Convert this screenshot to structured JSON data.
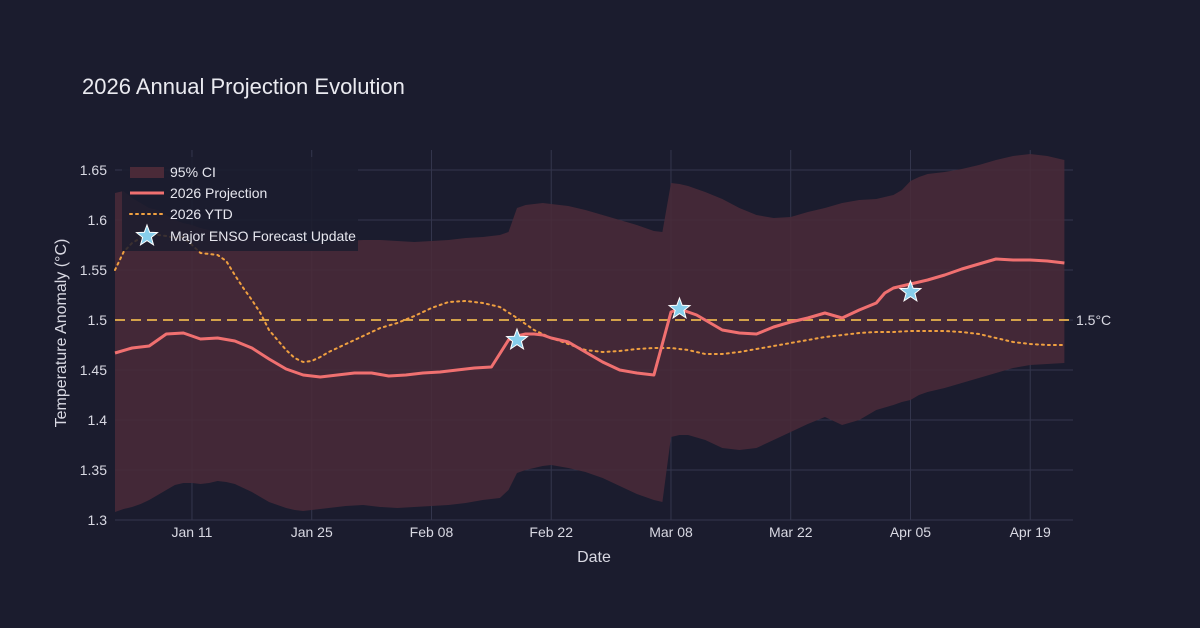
{
  "chart_data": {
    "type": "line",
    "title": "2026 Annual Projection Evolution",
    "xlabel": "Date",
    "ylabel": "Temperature Anomaly (°C)",
    "x_ticks": [
      "Jan 11",
      "Jan 25",
      "Feb 08",
      "Feb 22",
      "Mar 08",
      "Mar 22",
      "Apr 05",
      "Apr 19"
    ],
    "x_tick_days": [
      10,
      24,
      38,
      52,
      66,
      80,
      94,
      108
    ],
    "x_range_days": [
      1,
      113
    ],
    "x_reference": "2026-01-01",
    "ylim": [
      1.3,
      1.67
    ],
    "y_ticks": [
      "1.3",
      "1.35",
      "1.4",
      "1.45",
      "1.5",
      "1.55",
      "1.6",
      "1.65"
    ],
    "grid": true,
    "legend_position": "top-left",
    "colors": {
      "background": "#1b1c2e",
      "ci_fill": "#4a2a38",
      "projection": "#f07070",
      "ytd": "#f0a040",
      "threshold": "#d4a24a",
      "star": "#87ceeb"
    },
    "threshold": {
      "value": 1.5,
      "label": "1.5°C"
    },
    "legend": {
      "ci": "95% CI",
      "projection": "2026 Projection",
      "ytd": "2026 YTD",
      "enso": "Major ENSO Forecast Update"
    },
    "series": [
      {
        "name": "2026 Projection",
        "x": [
          1,
          3,
          5,
          7,
          9,
          11,
          13,
          15,
          17,
          19,
          21,
          23,
          25,
          27,
          29,
          31,
          33,
          35,
          37,
          39,
          41,
          43,
          45,
          47,
          48,
          49,
          50,
          51,
          52,
          54,
          56,
          58,
          60,
          62,
          64,
          66,
          67,
          68,
          69,
          70,
          72,
          74,
          76,
          78,
          80,
          82,
          84,
          86,
          88,
          90,
          91,
          92,
          94,
          96,
          98,
          100,
          102,
          104,
          106,
          108,
          110,
          112
        ],
        "values": [
          1.467,
          1.472,
          1.474,
          1.486,
          1.487,
          1.481,
          1.482,
          1.479,
          1.472,
          1.461,
          1.451,
          1.445,
          1.443,
          1.445,
          1.447,
          1.447,
          1.444,
          1.445,
          1.447,
          1.448,
          1.45,
          1.452,
          1.453,
          1.48,
          1.484,
          1.486,
          1.486,
          1.485,
          1.482,
          1.478,
          1.468,
          1.458,
          1.45,
          1.447,
          1.445,
          1.508,
          1.511,
          1.508,
          1.505,
          1.5,
          1.49,
          1.487,
          1.486,
          1.493,
          1.498,
          1.502,
          1.507,
          1.502,
          1.51,
          1.517,
          1.527,
          1.532,
          1.536,
          1.54,
          1.545,
          1.551,
          1.556,
          1.561,
          1.56,
          1.56,
          1.559,
          1.557
        ]
      },
      {
        "name": "2026 YTD",
        "x": [
          1,
          2,
          3,
          4,
          5,
          6,
          7,
          8,
          9,
          10,
          11,
          12,
          13,
          14,
          15,
          16,
          17,
          18,
          19,
          20,
          21,
          22,
          23,
          24,
          25,
          26,
          28,
          30,
          32,
          34,
          36,
          38,
          40,
          42,
          44,
          46,
          48,
          50,
          52,
          54,
          56,
          58,
          60,
          62,
          64,
          66,
          68,
          70,
          72,
          74,
          76,
          78,
          80,
          82,
          84,
          86,
          88,
          90,
          92,
          94,
          96,
          98,
          100,
          102,
          104,
          106,
          108,
          110,
          112
        ],
        "values": [
          1.55,
          1.568,
          1.577,
          1.582,
          1.584,
          1.585,
          1.584,
          1.582,
          1.583,
          1.575,
          1.567,
          1.566,
          1.565,
          1.559,
          1.545,
          1.532,
          1.52,
          1.507,
          1.49,
          1.48,
          1.47,
          1.462,
          1.458,
          1.459,
          1.463,
          1.468,
          1.476,
          1.484,
          1.492,
          1.497,
          1.504,
          1.512,
          1.518,
          1.519,
          1.517,
          1.513,
          1.502,
          1.49,
          1.482,
          1.476,
          1.47,
          1.468,
          1.469,
          1.471,
          1.472,
          1.472,
          1.47,
          1.466,
          1.466,
          1.468,
          1.471,
          1.474,
          1.477,
          1.48,
          1.483,
          1.485,
          1.487,
          1.488,
          1.488,
          1.489,
          1.489,
          1.489,
          1.488,
          1.486,
          1.482,
          1.478,
          1.476,
          1.475,
          1.475
        ]
      },
      {
        "name": "95% CI",
        "x": [
          1,
          2,
          3,
          4,
          5,
          6,
          7,
          8,
          9,
          10,
          11,
          12,
          13,
          14,
          15,
          16,
          17,
          18,
          19,
          20,
          21,
          22,
          23,
          24,
          25,
          26,
          28,
          30,
          32,
          34,
          36,
          38,
          40,
          42,
          44,
          46,
          47,
          48,
          49,
          50,
          51,
          52,
          54,
          56,
          58,
          60,
          62,
          64,
          65,
          66,
          67,
          68,
          70,
          72,
          74,
          76,
          78,
          80,
          82,
          84,
          86,
          88,
          90,
          92,
          93,
          94,
          95,
          96,
          98,
          100,
          102,
          104,
          106,
          108,
          110,
          112
        ],
        "upper": [
          1.627,
          1.629,
          1.622,
          1.617,
          1.612,
          1.61,
          1.605,
          1.6,
          1.597,
          1.595,
          1.592,
          1.59,
          1.588,
          1.586,
          1.585,
          1.584,
          1.583,
          1.582,
          1.581,
          1.58,
          1.579,
          1.578,
          1.577,
          1.577,
          1.577,
          1.578,
          1.579,
          1.58,
          1.58,
          1.579,
          1.578,
          1.579,
          1.58,
          1.582,
          1.583,
          1.585,
          1.588,
          1.612,
          1.615,
          1.616,
          1.617,
          1.616,
          1.614,
          1.61,
          1.605,
          1.6,
          1.595,
          1.589,
          1.588,
          1.637,
          1.636,
          1.634,
          1.628,
          1.621,
          1.612,
          1.605,
          1.602,
          1.603,
          1.608,
          1.612,
          1.617,
          1.62,
          1.621,
          1.625,
          1.63,
          1.639,
          1.643,
          1.646,
          1.648,
          1.651,
          1.655,
          1.66,
          1.664,
          1.666,
          1.664,
          1.66
        ],
        "lower": [
          1.308,
          1.311,
          1.313,
          1.316,
          1.32,
          1.325,
          1.33,
          1.335,
          1.337,
          1.337,
          1.336,
          1.337,
          1.339,
          1.338,
          1.336,
          1.332,
          1.328,
          1.323,
          1.318,
          1.315,
          1.312,
          1.31,
          1.309,
          1.31,
          1.311,
          1.312,
          1.314,
          1.315,
          1.313,
          1.312,
          1.313,
          1.314,
          1.315,
          1.317,
          1.32,
          1.322,
          1.33,
          1.347,
          1.35,
          1.352,
          1.354,
          1.355,
          1.352,
          1.348,
          1.342,
          1.334,
          1.326,
          1.32,
          1.318,
          1.383,
          1.385,
          1.385,
          1.38,
          1.372,
          1.37,
          1.372,
          1.38,
          1.388,
          1.396,
          1.403,
          1.395,
          1.4,
          1.41,
          1.415,
          1.418,
          1.42,
          1.425,
          1.428,
          1.432,
          1.437,
          1.442,
          1.447,
          1.452,
          1.455,
          1.456,
          1.457
        ]
      },
      {
        "name": "Major ENSO Forecast Update",
        "x": [
          48,
          67,
          94
        ],
        "values": [
          1.48,
          1.511,
          1.528
        ]
      }
    ]
  }
}
